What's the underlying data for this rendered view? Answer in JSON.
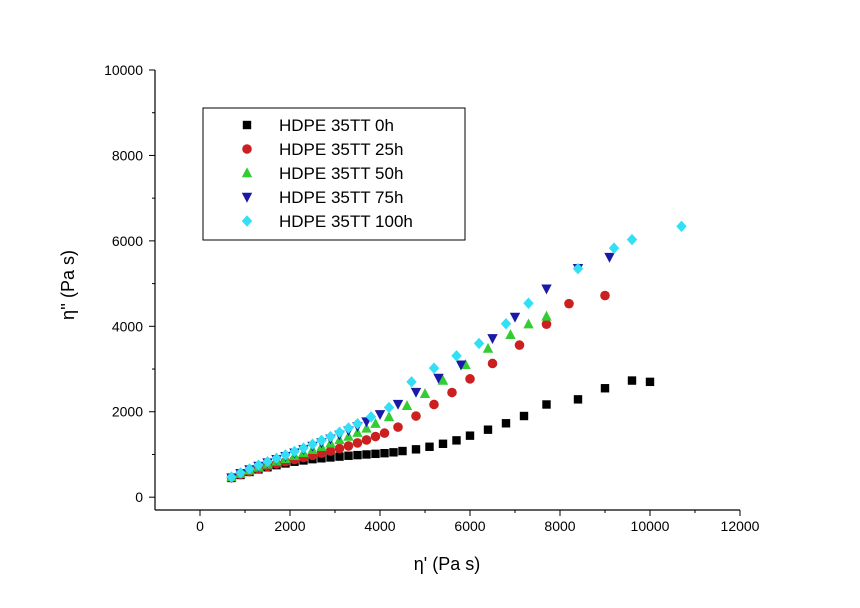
{
  "chart_data": {
    "type": "scatter",
    "xlabel": "η' (Pa s)",
    "ylabel": "η'' (Pa s)",
    "xlim": [
      -1000,
      12000
    ],
    "ylim": [
      -300,
      10000
    ],
    "x_ticks": [
      0,
      2000,
      4000,
      6000,
      8000,
      10000,
      12000
    ],
    "y_ticks": [
      0,
      2000,
      4000,
      6000,
      8000,
      10000
    ],
    "grid": false,
    "legend_position": "top-left",
    "series": [
      {
        "name": "HDPE 35TT 0h",
        "color": "#000000",
        "marker": "square",
        "points": [
          [
            700,
            450
          ],
          [
            900,
            520
          ],
          [
            1100,
            590
          ],
          [
            1300,
            650
          ],
          [
            1500,
            700
          ],
          [
            1700,
            750
          ],
          [
            1900,
            790
          ],
          [
            2100,
            830
          ],
          [
            2300,
            860
          ],
          [
            2500,
            890
          ],
          [
            2700,
            910
          ],
          [
            2900,
            930
          ],
          [
            3100,
            950
          ],
          [
            3300,
            970
          ],
          [
            3500,
            985
          ],
          [
            3700,
            1000
          ],
          [
            3900,
            1015
          ],
          [
            4100,
            1030
          ],
          [
            4300,
            1050
          ],
          [
            4500,
            1080
          ],
          [
            4800,
            1120
          ],
          [
            5100,
            1180
          ],
          [
            5400,
            1250
          ],
          [
            5700,
            1330
          ],
          [
            6000,
            1440
          ],
          [
            6400,
            1580
          ],
          [
            6800,
            1730
          ],
          [
            7200,
            1900
          ],
          [
            7700,
            2170
          ],
          [
            8400,
            2290
          ],
          [
            9000,
            2550
          ],
          [
            9600,
            2730
          ],
          [
            10000,
            2700
          ]
        ]
      },
      {
        "name": "HDPE 35TT 25h",
        "color": "#cc1f1f",
        "marker": "circle",
        "points": [
          [
            700,
            460
          ],
          [
            900,
            530
          ],
          [
            1100,
            600
          ],
          [
            1300,
            660
          ],
          [
            1500,
            720
          ],
          [
            1700,
            780
          ],
          [
            1900,
            830
          ],
          [
            2100,
            880
          ],
          [
            2300,
            930
          ],
          [
            2500,
            980
          ],
          [
            2700,
            1030
          ],
          [
            2900,
            1080
          ],
          [
            3100,
            1140
          ],
          [
            3300,
            1200
          ],
          [
            3500,
            1270
          ],
          [
            3700,
            1340
          ],
          [
            3900,
            1420
          ],
          [
            4100,
            1500
          ],
          [
            4400,
            1640
          ],
          [
            4800,
            1900
          ],
          [
            5200,
            2170
          ],
          [
            5600,
            2450
          ],
          [
            6000,
            2770
          ],
          [
            6500,
            3130
          ],
          [
            7100,
            3560
          ],
          [
            7700,
            4050
          ],
          [
            8200,
            4530
          ],
          [
            9000,
            4720
          ]
        ]
      },
      {
        "name": "HDPE 35TT 50h",
        "color": "#33cc33",
        "marker": "triangle-up",
        "points": [
          [
            700,
            470
          ],
          [
            900,
            550
          ],
          [
            1100,
            630
          ],
          [
            1300,
            700
          ],
          [
            1500,
            770
          ],
          [
            1700,
            840
          ],
          [
            1900,
            900
          ],
          [
            2100,
            970
          ],
          [
            2300,
            1040
          ],
          [
            2500,
            1110
          ],
          [
            2700,
            1180
          ],
          [
            2900,
            1260
          ],
          [
            3100,
            1340
          ],
          [
            3300,
            1420
          ],
          [
            3500,
            1510
          ],
          [
            3700,
            1610
          ],
          [
            3900,
            1720
          ],
          [
            4200,
            1880
          ],
          [
            4600,
            2140
          ],
          [
            5000,
            2420
          ],
          [
            5400,
            2730
          ],
          [
            5900,
            3100
          ],
          [
            6400,
            3480
          ],
          [
            6900,
            3800
          ],
          [
            7300,
            4050
          ],
          [
            7700,
            4230
          ]
        ]
      },
      {
        "name": "HDPE 35TT 75h",
        "color": "#1a1aa6",
        "marker": "triangle-down",
        "points": [
          [
            700,
            460
          ],
          [
            900,
            560
          ],
          [
            1100,
            650
          ],
          [
            1300,
            730
          ],
          [
            1500,
            810
          ],
          [
            1700,
            890
          ],
          [
            1900,
            960
          ],
          [
            2100,
            1040
          ],
          [
            2300,
            1120
          ],
          [
            2500,
            1200
          ],
          [
            2700,
            1280
          ],
          [
            2900,
            1370
          ],
          [
            3100,
            1460
          ],
          [
            3300,
            1560
          ],
          [
            3500,
            1660
          ],
          [
            3700,
            1770
          ],
          [
            4000,
            1940
          ],
          [
            4400,
            2180
          ],
          [
            4800,
            2460
          ],
          [
            5300,
            2790
          ],
          [
            5800,
            3100
          ],
          [
            6500,
            3720
          ],
          [
            7000,
            4220
          ],
          [
            7700,
            4880
          ],
          [
            8400,
            5360
          ],
          [
            9100,
            5620
          ]
        ]
      },
      {
        "name": "HDPE 35TT 100h",
        "color": "#33dff5",
        "marker": "diamond",
        "points": [
          [
            700,
            470
          ],
          [
            900,
            570
          ],
          [
            1100,
            660
          ],
          [
            1300,
            750
          ],
          [
            1500,
            830
          ],
          [
            1700,
            910
          ],
          [
            1900,
            990
          ],
          [
            2100,
            1070
          ],
          [
            2300,
            1150
          ],
          [
            2500,
            1240
          ],
          [
            2700,
            1330
          ],
          [
            2900,
            1420
          ],
          [
            3100,
            1520
          ],
          [
            3300,
            1620
          ],
          [
            3500,
            1720
          ],
          [
            3800,
            1880
          ],
          [
            4200,
            2100
          ],
          [
            4700,
            2700
          ],
          [
            5200,
            3020
          ],
          [
            5700,
            3310
          ],
          [
            6200,
            3600
          ],
          [
            6800,
            4060
          ],
          [
            7300,
            4540
          ],
          [
            8400,
            5350
          ],
          [
            9200,
            5830
          ],
          [
            9600,
            6030
          ],
          [
            10700,
            6340
          ]
        ]
      }
    ]
  }
}
